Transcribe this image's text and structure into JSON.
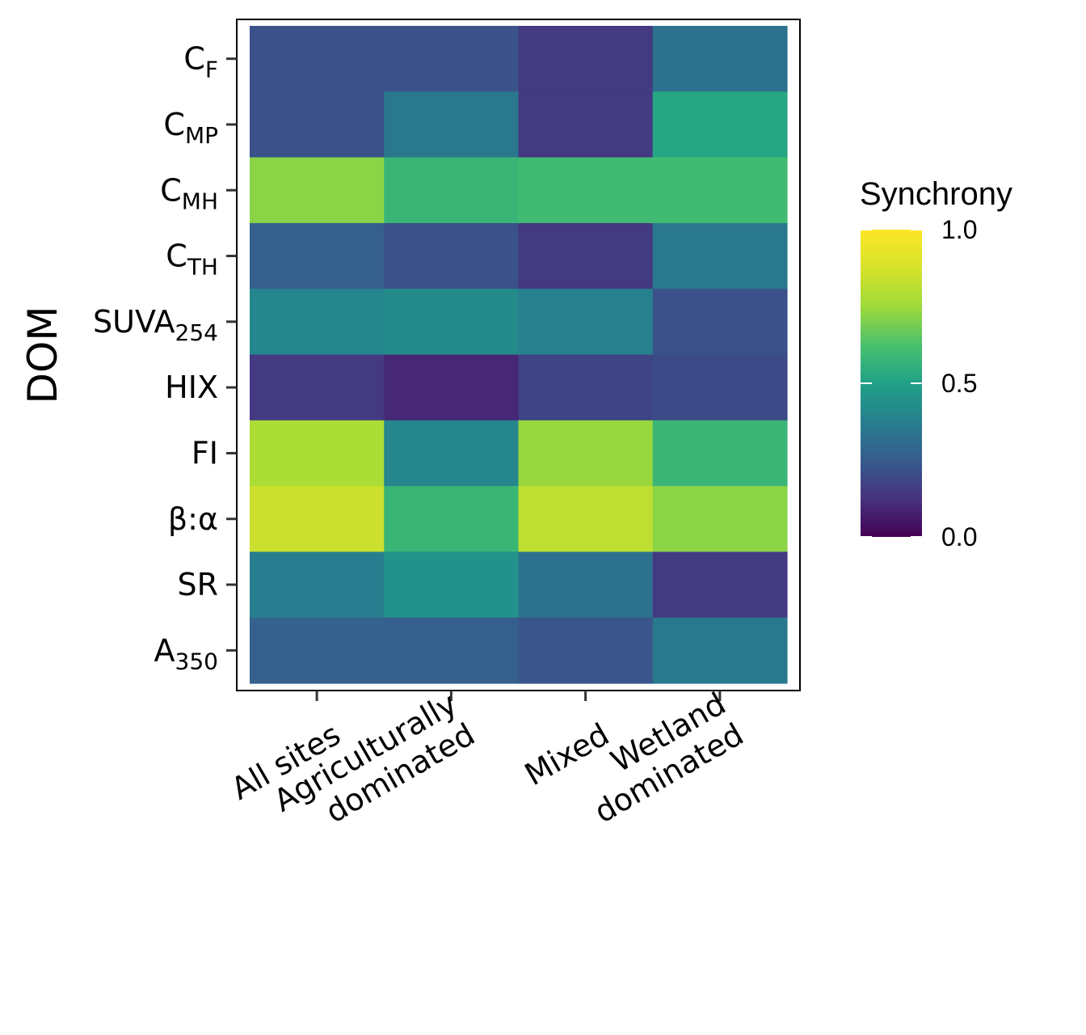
{
  "chart_data": {
    "type": "heatmap",
    "ylabel": "DOM",
    "xlabel": "",
    "x": [
      {
        "lines": [
          "All sites"
        ]
      },
      {
        "lines": [
          "Agriculturally",
          "dominated"
        ]
      },
      {
        "lines": [
          "Mixed"
        ]
      },
      {
        "lines": [
          "Wetland",
          "dominated"
        ]
      }
    ],
    "y": [
      {
        "base": "C",
        "sub": "F"
      },
      {
        "base": "C",
        "sub": "MP"
      },
      {
        "base": "C",
        "sub": "MH"
      },
      {
        "base": "C",
        "sub": "TH"
      },
      {
        "base": "SUVA",
        "sub": "254"
      },
      {
        "base": "HIX",
        "sub": ""
      },
      {
        "base": "FI",
        "sub": ""
      },
      {
        "base": "β:α",
        "sub": ""
      },
      {
        "base": "SR",
        "sub": ""
      },
      {
        "base": "A",
        "sub": "350"
      }
    ],
    "values": [
      [
        0.22,
        0.22,
        0.15,
        0.33
      ],
      [
        0.22,
        0.35,
        0.15,
        0.52
      ],
      [
        0.72,
        0.58,
        0.6,
        0.6
      ],
      [
        0.26,
        0.22,
        0.15,
        0.35
      ],
      [
        0.4,
        0.42,
        0.38,
        0.22
      ],
      [
        0.15,
        0.1,
        0.18,
        0.2
      ],
      [
        0.78,
        0.4,
        0.74,
        0.58
      ],
      [
        0.85,
        0.58,
        0.82,
        0.72
      ],
      [
        0.37,
        0.45,
        0.33,
        0.15
      ],
      [
        0.27,
        0.26,
        0.23,
        0.35
      ]
    ],
    "legend": {
      "title": "Synchrony",
      "ticks": [
        "0.0",
        "0.5",
        "1.0"
      ],
      "range": [
        0,
        1
      ],
      "placement": "right"
    },
    "colorscale": "viridis",
    "grid": false
  }
}
